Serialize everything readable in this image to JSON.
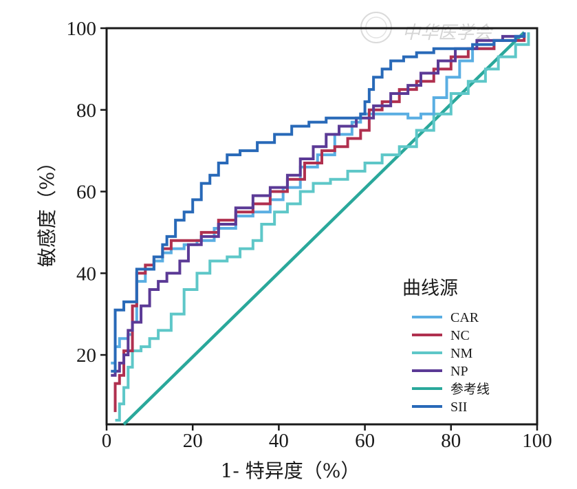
{
  "chart_data": {
    "type": "line",
    "title": "",
    "xlabel": "1- 特异度（%）",
    "ylabel": "敏感度（%）",
    "xlim": [
      0,
      100
    ],
    "ylim": [
      3,
      100
    ],
    "xticks": [
      0,
      20,
      40,
      60,
      80,
      100
    ],
    "yticks": [
      20,
      40,
      60,
      80,
      100
    ],
    "grid": false,
    "legend": {
      "title": "曲线源",
      "placement": "bottom-right"
    },
    "series": [
      {
        "name": "CAR",
        "color": "#5aaee2",
        "points": [
          [
            1,
            18
          ],
          [
            2,
            18
          ],
          [
            2,
            22
          ],
          [
            3,
            24
          ],
          [
            5,
            25
          ],
          [
            6,
            28
          ],
          [
            7,
            38
          ],
          [
            9,
            41
          ],
          [
            11,
            43
          ],
          [
            13,
            45
          ],
          [
            15,
            46
          ],
          [
            18,
            47
          ],
          [
            21,
            48
          ],
          [
            25,
            51
          ],
          [
            30,
            54
          ],
          [
            34,
            55
          ],
          [
            38,
            58
          ],
          [
            41,
            61
          ],
          [
            45,
            66
          ],
          [
            49,
            69
          ],
          [
            53,
            74
          ],
          [
            57,
            77
          ],
          [
            59,
            79
          ],
          [
            62,
            79
          ],
          [
            66,
            79
          ],
          [
            70,
            78
          ],
          [
            73,
            79
          ],
          [
            76,
            83
          ],
          [
            79,
            88
          ],
          [
            82,
            92
          ],
          [
            85,
            95
          ],
          [
            90,
            97
          ],
          [
            95,
            98
          ],
          [
            97,
            99
          ]
        ]
      },
      {
        "name": "NC",
        "color": "#b0304f",
        "points": [
          [
            2,
            6
          ],
          [
            2,
            13
          ],
          [
            3,
            15
          ],
          [
            4,
            21
          ],
          [
            6,
            23
          ],
          [
            6,
            32
          ],
          [
            7,
            40
          ],
          [
            9,
            42
          ],
          [
            11,
            44
          ],
          [
            13,
            46
          ],
          [
            15,
            48
          ],
          [
            19,
            48
          ],
          [
            22,
            50
          ],
          [
            26,
            53
          ],
          [
            30,
            55
          ],
          [
            34,
            57
          ],
          [
            38,
            60
          ],
          [
            42,
            63
          ],
          [
            46,
            67
          ],
          [
            50,
            70
          ],
          [
            53,
            71
          ],
          [
            56,
            73
          ],
          [
            59,
            75
          ],
          [
            61,
            80
          ],
          [
            64,
            82
          ],
          [
            68,
            85
          ],
          [
            72,
            87
          ],
          [
            76,
            90
          ],
          [
            80,
            93
          ],
          [
            84,
            95
          ],
          [
            90,
            97
          ],
          [
            97,
            99
          ]
        ]
      },
      {
        "name": "NM",
        "color": "#5ec7c8",
        "points": [
          [
            2,
            4
          ],
          [
            3,
            8
          ],
          [
            4,
            12
          ],
          [
            5,
            17
          ],
          [
            6,
            21
          ],
          [
            8,
            22
          ],
          [
            10,
            24
          ],
          [
            12,
            26
          ],
          [
            15,
            30
          ],
          [
            18,
            36
          ],
          [
            21,
            40
          ],
          [
            24,
            43
          ],
          [
            28,
            44
          ],
          [
            31,
            46
          ],
          [
            34,
            48
          ],
          [
            36,
            52
          ],
          [
            39,
            55
          ],
          [
            42,
            57
          ],
          [
            45,
            60
          ],
          [
            48,
            62
          ],
          [
            52,
            63
          ],
          [
            56,
            65
          ],
          [
            60,
            67
          ],
          [
            64,
            69
          ],
          [
            68,
            71
          ],
          [
            72,
            75
          ],
          [
            76,
            79
          ],
          [
            80,
            84
          ],
          [
            84,
            87
          ],
          [
            88,
            90
          ],
          [
            91,
            93
          ],
          [
            95,
            96
          ],
          [
            98,
            99
          ]
        ]
      },
      {
        "name": "NP",
        "color": "#5b3a96",
        "points": [
          [
            1,
            15
          ],
          [
            2,
            16
          ],
          [
            3,
            18
          ],
          [
            4,
            20
          ],
          [
            5,
            26
          ],
          [
            6,
            28
          ],
          [
            8,
            32
          ],
          [
            10,
            36
          ],
          [
            12,
            38
          ],
          [
            14,
            40
          ],
          [
            17,
            43
          ],
          [
            19,
            47
          ],
          [
            22,
            49
          ],
          [
            26,
            52
          ],
          [
            30,
            56
          ],
          [
            34,
            59
          ],
          [
            38,
            61
          ],
          [
            42,
            64
          ],
          [
            45,
            68
          ],
          [
            48,
            71
          ],
          [
            51,
            74
          ],
          [
            54,
            76
          ],
          [
            58,
            78
          ],
          [
            62,
            81
          ],
          [
            66,
            84
          ],
          [
            70,
            86
          ],
          [
            73,
            89
          ],
          [
            77,
            92
          ],
          [
            81,
            95
          ],
          [
            86,
            97
          ],
          [
            92,
            98
          ],
          [
            97,
            99
          ]
        ]
      },
      {
        "name": "参考线",
        "color": "#2aa89b",
        "points": [
          [
            4,
            3
          ],
          [
            97,
            99
          ]
        ]
      },
      {
        "name": "SII",
        "color": "#2869b8",
        "points": [
          [
            1,
            16
          ],
          [
            2,
            16
          ],
          [
            2,
            31
          ],
          [
            4,
            31
          ],
          [
            4,
            33
          ],
          [
            7,
            33
          ],
          [
            7,
            41
          ],
          [
            11,
            41
          ],
          [
            11,
            44
          ],
          [
            13,
            47
          ],
          [
            14,
            49
          ],
          [
            16,
            53
          ],
          [
            18,
            55
          ],
          [
            20,
            58
          ],
          [
            22,
            62
          ],
          [
            24,
            64
          ],
          [
            26,
            67
          ],
          [
            28,
            69
          ],
          [
            31,
            70
          ],
          [
            35,
            72
          ],
          [
            39,
            74
          ],
          [
            43,
            76
          ],
          [
            47,
            77
          ],
          [
            51,
            78
          ],
          [
            56,
            78
          ],
          [
            59,
            79
          ],
          [
            60,
            82
          ],
          [
            61,
            85
          ],
          [
            62,
            88
          ],
          [
            64,
            90
          ],
          [
            66,
            92
          ],
          [
            69,
            93
          ],
          [
            72,
            94
          ],
          [
            76,
            95
          ],
          [
            80,
            95
          ],
          [
            85,
            96
          ],
          [
            90,
            97
          ],
          [
            95,
            98
          ],
          [
            97,
            99
          ]
        ]
      }
    ]
  },
  "legend_items": [
    "CAR",
    "NC",
    "NM",
    "NP",
    "参考线",
    "SII"
  ],
  "watermark": "中华医学会"
}
